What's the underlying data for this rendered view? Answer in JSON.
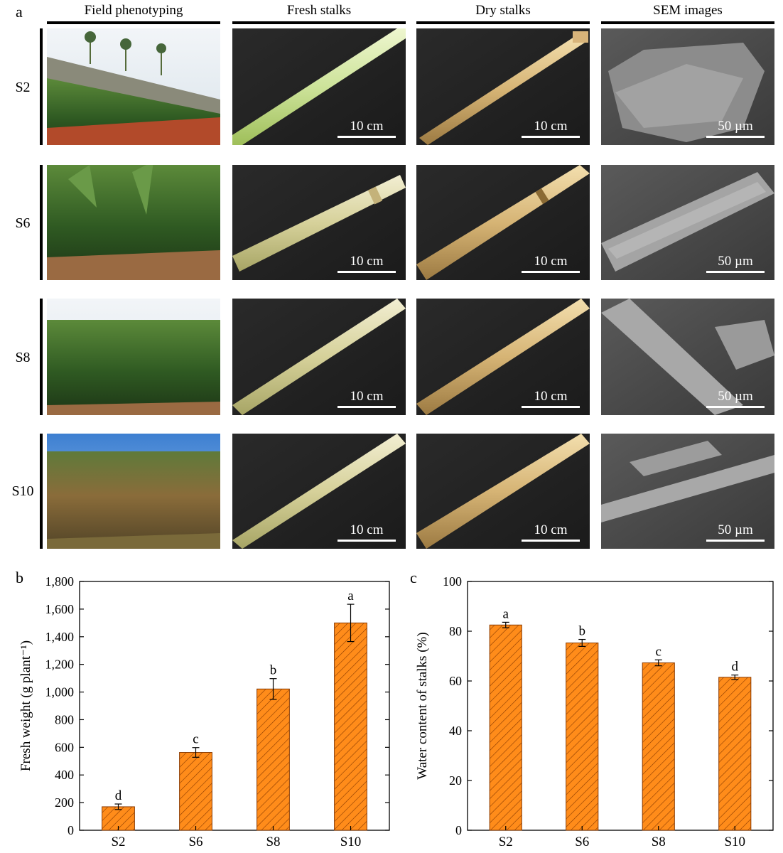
{
  "panels": {
    "a": "a",
    "b": "b",
    "c": "c"
  },
  "columns": [
    "Field phenotyping",
    "Fresh stalks",
    "Dry stalks",
    "SEM images"
  ],
  "rows": [
    "S2",
    "S6",
    "S8",
    "S10"
  ],
  "scale_cm": "10 cm",
  "scale_um": "50 µm",
  "chart_data": [
    {
      "type": "bar",
      "panel": "b",
      "categories": [
        "S2",
        "S6",
        "S8",
        "S10"
      ],
      "values": [
        170,
        563,
        1022,
        1500
      ],
      "errors": [
        20,
        35,
        75,
        135
      ],
      "letters": [
        "d",
        "c",
        "b",
        "a"
      ],
      "ylabel": "Fresh weight (g plant⁻¹)",
      "ylim": [
        0,
        1800
      ],
      "yticks": [
        "0",
        "200",
        "400",
        "600",
        "800",
        "1,000",
        "1,200",
        "1,400",
        "1,600",
        "1,800"
      ],
      "bar_color": "#ff8c1a",
      "grid": false
    },
    {
      "type": "bar",
      "panel": "c",
      "categories": [
        "S2",
        "S6",
        "S8",
        "S10"
      ],
      "values": [
        82.5,
        75.3,
        67.3,
        61.5
      ],
      "errors": [
        1.1,
        1.4,
        1.2,
        0.9
      ],
      "letters": [
        "a",
        "b",
        "c",
        "d"
      ],
      "ylabel": "Water content of stalks (%)",
      "ylim": [
        0,
        100
      ],
      "yticks": [
        "0",
        "20",
        "40",
        "60",
        "80",
        "100"
      ],
      "bar_color": "#ff8c1a",
      "grid": false
    }
  ]
}
